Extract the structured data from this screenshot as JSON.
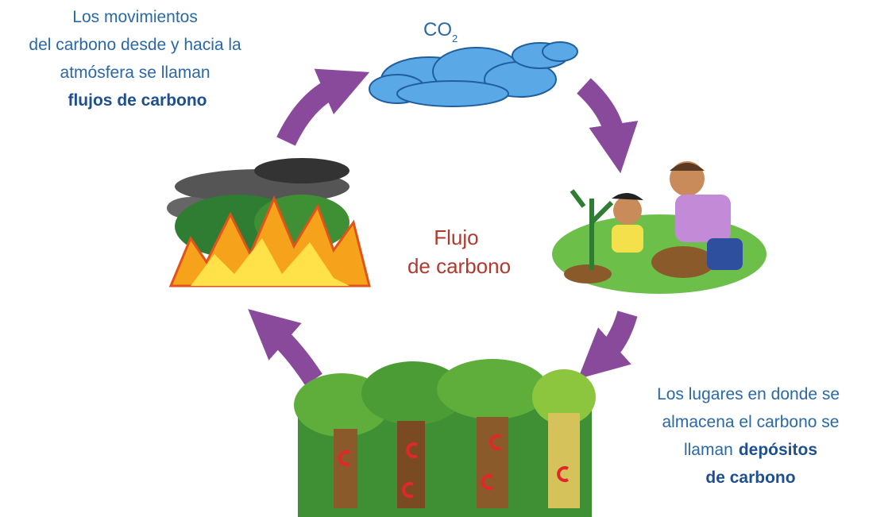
{
  "flows_note": {
    "lines": [
      "Los movimientos",
      "del carbono desde y hacia la",
      "atmósfera se llaman"
    ],
    "emphasis": "flujos de carbono"
  },
  "co2": {
    "text": "CO",
    "subscript": "2"
  },
  "center_label": {
    "lines": [
      "Flujo",
      "de carbono"
    ]
  },
  "pools_note": {
    "lines": [
      "Los lugares en donde se",
      "almacena el carbono se",
      "llaman"
    ],
    "emphasis_lines": [
      "depósitos",
      "de carbono"
    ]
  }
}
